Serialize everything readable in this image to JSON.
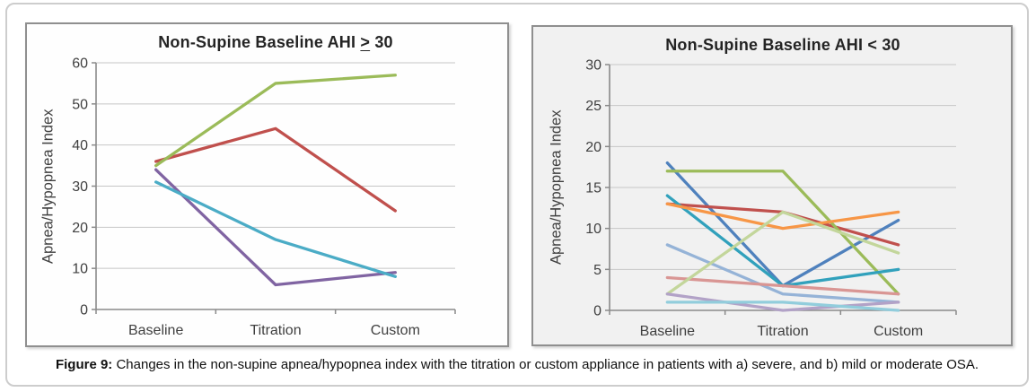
{
  "caption": {
    "label": "Figure 9:",
    "text": "Changes in the non-supine apnea/hypopnea index with the titration or custom appliance in patients with a) severe, and b) mild or moderate OSA."
  },
  "chart_data": [
    {
      "type": "line",
      "title": "Non-Supine Baseline AHI ≥ 30",
      "title_prefix": "Non-Supine Baseline AHI",
      "title_symbol": ">",
      "title_suffix": "30",
      "ylabel": "Apnea/Hypopnea Index",
      "xlabel": "",
      "categories": [
        "Baseline",
        "Titration",
        "Custom"
      ],
      "ylim": [
        0,
        60
      ],
      "yticks": [
        0,
        10,
        20,
        30,
        40,
        50,
        60
      ],
      "grid": true,
      "legend": "none",
      "series": [
        {
          "color": "#C0504D",
          "values": [
            36,
            44,
            24
          ]
        },
        {
          "color": "#9BBB59",
          "values": [
            35,
            55,
            57
          ]
        },
        {
          "color": "#8064A2",
          "values": [
            34,
            6,
            9
          ]
        },
        {
          "color": "#4BACC6",
          "values": [
            31,
            17,
            8
          ]
        }
      ]
    },
    {
      "type": "line",
      "title": "Non-Supine Baseline AHI < 30",
      "title_prefix": "Non-Supine Baseline AHI",
      "title_symbol": "<",
      "title_suffix": "30",
      "ylabel": "Apnea/Hypopnea Index",
      "xlabel": "",
      "categories": [
        "Baseline",
        "Titration",
        "Custom"
      ],
      "ylim": [
        0,
        30
      ],
      "yticks": [
        0,
        5,
        10,
        15,
        20,
        25,
        30
      ],
      "grid": true,
      "legend": "none",
      "series": [
        {
          "color": "#4F81BD",
          "values": [
            18,
            3,
            11
          ]
        },
        {
          "color": "#C0504D",
          "values": [
            13,
            12,
            8
          ]
        },
        {
          "color": "#9BBB59",
          "values": [
            17,
            17,
            2
          ]
        },
        {
          "color": "#31A1BC",
          "values": [
            14,
            3,
            5
          ]
        },
        {
          "color": "#F79646",
          "values": [
            13,
            10,
            12
          ]
        },
        {
          "color": "#95B3D7",
          "values": [
            8,
            2,
            1
          ]
        },
        {
          "color": "#D99694",
          "values": [
            4,
            3,
            2
          ]
        },
        {
          "color": "#C3D69B",
          "values": [
            2,
            12,
            7
          ]
        },
        {
          "color": "#B2A2C7",
          "values": [
            2,
            0,
            1
          ]
        },
        {
          "color": "#92CDDC",
          "values": [
            1,
            1,
            0
          ]
        }
      ]
    }
  ]
}
